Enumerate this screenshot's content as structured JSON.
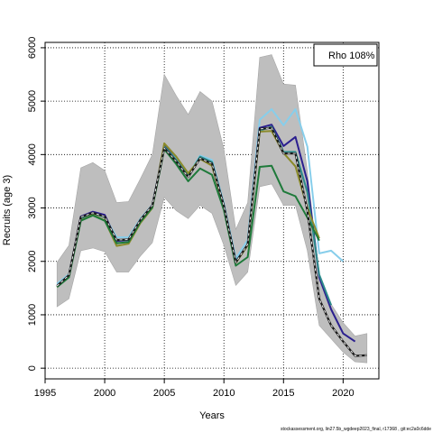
{
  "chart_data": {
    "type": "line",
    "xlabel": "Years",
    "ylabel": "Recruits (age 3)",
    "xlim": [
      1995,
      2023
    ],
    "ylim": [
      -200,
      6100
    ],
    "xticks": [
      1995,
      2000,
      2005,
      2010,
      2015,
      2020
    ],
    "yticks": [
      0,
      1000,
      2000,
      3000,
      4000,
      5000,
      6000
    ],
    "grid": "dotted",
    "legend": {
      "text": "Rho 108%",
      "placement": "top-right"
    },
    "footnote": "stockassessment.org, lin27.5b_wgdeep2023_final, r17368 , git:ec2a0c6dde",
    "colors": {
      "band": "#bebebe",
      "band_edge": "#a6a6a6",
      "lightblue": "#87ceeb",
      "navy": "#2b1f8f",
      "teal": "#2e8b8b",
      "olive": "#8b8b2a",
      "green": "#1e7a3a",
      "base": "#1a1a1a"
    },
    "band": {
      "x": [
        1996,
        1997,
        1998,
        1999,
        2000,
        2001,
        2002,
        2003,
        2004,
        2005,
        2006,
        2007,
        2008,
        2009,
        2010,
        2011,
        2012,
        2013,
        2014,
        2015,
        2016,
        2017,
        2018,
        2019,
        2020,
        2021,
        2022
      ],
      "upper": [
        1980,
        2300,
        3750,
        3850,
        3700,
        3100,
        3120,
        3550,
        4000,
        5500,
        5100,
        4750,
        5180,
        5000,
        4100,
        2600,
        3100,
        5820,
        5870,
        5320,
        5300,
        3700,
        1750,
        1200,
        850,
        600,
        650
      ],
      "lower": [
        1150,
        1300,
        2200,
        2250,
        2180,
        1800,
        1800,
        2100,
        2350,
        3200,
        2950,
        2800,
        3050,
        2900,
        2300,
        1550,
        1800,
        3400,
        3450,
        3050,
        3050,
        2200,
        800,
        550,
        300,
        120,
        100
      ]
    },
    "series": [
      {
        "key": "lightblue",
        "x": [
          1996,
          1997,
          1998,
          1999,
          2000,
          2001,
          2002,
          2003,
          2004,
          2005,
          2006,
          2007,
          2008,
          2009,
          2010,
          2011,
          2012,
          2013,
          2014,
          2015,
          2016,
          2017,
          2018,
          2019,
          2020
        ],
        "values": [
          1580,
          1760,
          2800,
          2920,
          2840,
          2450,
          2450,
          2800,
          3060,
          4150,
          3920,
          3620,
          3980,
          3900,
          3080,
          2050,
          2400,
          4650,
          4850,
          4550,
          4850,
          4150,
          2150,
          2200,
          2000
        ]
      },
      {
        "key": "navy",
        "x": [
          1996,
          1997,
          1998,
          1999,
          2000,
          2001,
          2002,
          2003,
          2004,
          2005,
          2006,
          2007,
          2008,
          2009,
          2010,
          2011,
          2012,
          2013,
          2014,
          2015,
          2016,
          2017,
          2018,
          2019,
          2020,
          2021
        ],
        "values": [
          1540,
          1730,
          2840,
          2930,
          2870,
          2380,
          2400,
          2760,
          3030,
          4180,
          3890,
          3600,
          3950,
          3850,
          3050,
          2000,
          2300,
          4500,
          4560,
          4160,
          4330,
          3500,
          1700,
          1100,
          650,
          500
        ]
      },
      {
        "key": "teal",
        "x": [
          1996,
          1997,
          1998,
          1999,
          2000,
          2001,
          2002,
          2003,
          2004,
          2005,
          2006,
          2007,
          2008,
          2009,
          2010,
          2011,
          2012,
          2013,
          2014,
          2015,
          2016,
          2017,
          2018,
          2019
        ],
        "values": [
          1530,
          1720,
          2800,
          2900,
          2830,
          2400,
          2400,
          2750,
          3030,
          4150,
          3900,
          3600,
          3960,
          3860,
          3050,
          2000,
          2300,
          4450,
          4520,
          4050,
          4050,
          3300,
          1750,
          1180
        ]
      },
      {
        "key": "olive",
        "x": [
          1996,
          1997,
          1998,
          1999,
          2000,
          2001,
          2002,
          2003,
          2004,
          2005,
          2006,
          2007,
          2008,
          2009,
          2010,
          2011,
          2012,
          2013,
          2014,
          2015,
          2016,
          2017,
          2018
        ],
        "values": [
          1520,
          1740,
          2770,
          2870,
          2770,
          2290,
          2330,
          2720,
          3000,
          4210,
          3960,
          3650,
          3920,
          3790,
          3020,
          1970,
          2300,
          4430,
          4440,
          4030,
          3780,
          3000,
          2430
        ]
      },
      {
        "key": "green",
        "x": [
          1996,
          1997,
          1998,
          1999,
          2000,
          2001,
          2002,
          2003,
          2004,
          2005,
          2006,
          2007,
          2008,
          2009,
          2010,
          2011,
          2012,
          2013,
          2014,
          2015,
          2016,
          2017,
          2018
        ],
        "values": [
          1520,
          1700,
          2760,
          2860,
          2760,
          2340,
          2360,
          2740,
          3010,
          4100,
          3820,
          3500,
          3740,
          3620,
          2960,
          1920,
          2080,
          3770,
          3790,
          3310,
          3220,
          2820,
          2390
        ]
      },
      {
        "key": "base",
        "x": [
          1996,
          1997,
          1998,
          1999,
          2000,
          2001,
          2002,
          2003,
          2004,
          2005,
          2006,
          2007,
          2008,
          2009,
          2010,
          2011,
          2012,
          2013,
          2014,
          2015,
          2016,
          2017,
          2018,
          2019,
          2020,
          2021,
          2022
        ],
        "values": [
          1540,
          1740,
          2830,
          2910,
          2840,
          2400,
          2410,
          2780,
          3050,
          4120,
          3870,
          3580,
          3930,
          3830,
          3040,
          1980,
          2320,
          4480,
          4500,
          4020,
          4020,
          2950,
          1300,
          800,
          500,
          230,
          240
        ]
      }
    ]
  }
}
